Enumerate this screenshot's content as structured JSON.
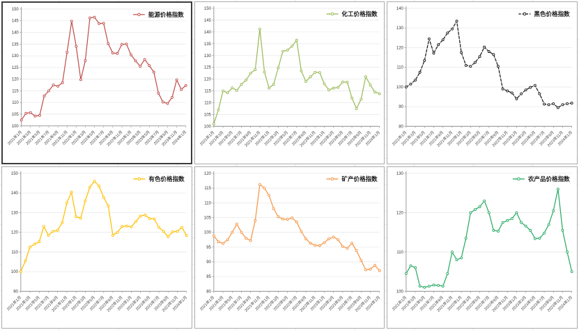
{
  "window": {
    "description": "spreadsheet canvas with six embedded line charts of commodity price indices"
  },
  "x_tick_labels": [
    "2021年1月",
    "2021年3月",
    "2021年5月",
    "2021年7月",
    "2021年9月",
    "2021年11月",
    "2022年1月",
    "2022年3月",
    "2022年5月",
    "2022年7月",
    "2022年9月",
    "2022年11月",
    "2023年1月",
    "2023年3月",
    "2023年5月",
    "2023年7月",
    "2023年9月",
    "2023年11月",
    "2024年1月"
  ],
  "chart_data": [
    {
      "type": "line",
      "title": "能源价格指数",
      "legend": "能源价格指数",
      "legend_position": "top-right",
      "color": "#C0504D",
      "line_style": "solid",
      "marker": "circle-open",
      "grid": "horizontal",
      "ylim": [
        100,
        150
      ],
      "ytick_step": 5,
      "x_months": 37,
      "x_range": "2021年1月 – 2024年1月 (monthly)",
      "values": [
        102.5,
        105.4,
        105.7,
        104.2,
        104.5,
        112.8,
        115.0,
        117.5,
        117.0,
        118.5,
        131.5,
        144.8,
        134.0,
        119.8,
        128.0,
        146.2,
        146.5,
        143.8,
        143.9,
        135.2,
        131.2,
        131.0,
        134.9,
        135.0,
        130.4,
        127.8,
        125.5,
        128.4,
        125.8,
        123.0,
        114.0,
        110.2,
        109.6,
        112.2,
        119.7,
        115.6,
        117.3
      ]
    },
    {
      "type": "line",
      "title": "化工价格指数",
      "legend": "化工价格指数",
      "legend_position": "top-right",
      "color": "#9BBB59",
      "line_style": "solid",
      "marker": "circle-open",
      "grid": "horizontal",
      "ylim": [
        100,
        150
      ],
      "ytick_step": 5,
      "x_months": 37,
      "x_range": "2021年1月 – 2024年1月 (monthly)",
      "values": [
        101.0,
        107.0,
        115.0,
        114.2,
        116.3,
        115.2,
        117.8,
        119.6,
        122.5,
        124.0,
        141.2,
        123.0,
        116.2,
        117.8,
        124.8,
        131.8,
        132.3,
        134.0,
        136.5,
        123.5,
        119.0,
        121.0,
        122.9,
        122.8,
        118.0,
        115.4,
        116.2,
        116.5,
        118.8,
        118.7,
        112.0,
        107.5,
        111.5,
        121.0,
        117.5,
        114.5,
        113.8
      ]
    },
    {
      "type": "line",
      "title": "黑色价格指数",
      "legend": "黑色价格指数",
      "legend_position": "top-right",
      "color": "#1a1a1a",
      "line_style": "dashed",
      "marker": "circle-open",
      "grid": "horizontal",
      "ylim": [
        80,
        140
      ],
      "ytick_step": 10,
      "x_months": 37,
      "x_range": "2021年1月 – 2024年1月 (monthly)",
      "values": [
        100.0,
        101.5,
        103.5,
        107.5,
        113.5,
        124.5,
        117.2,
        121.5,
        124.0,
        127.5,
        129.5,
        133.5,
        117.5,
        111.0,
        110.5,
        112.5,
        115.5,
        120.3,
        118.0,
        116.5,
        110.5,
        99.0,
        98.0,
        97.0,
        94.0,
        96.5,
        98.5,
        99.8,
        100.8,
        96.5,
        91.3,
        91.0,
        91.5,
        89.5,
        91.0,
        91.5,
        91.8
      ]
    },
    {
      "type": "line",
      "title": "有色价格指数",
      "legend": "有色价格指数",
      "legend_position": "top-right",
      "color": "#FFC000",
      "line_style": "solid",
      "marker": "circle-open",
      "grid": "horizontal",
      "ylim": [
        90,
        150
      ],
      "ytick_step": 10,
      "x_months": 37,
      "x_range": "2021年1月 – 2024年1月 (monthly)",
      "values": [
        100.0,
        105.5,
        112.5,
        114.0,
        115.2,
        123.0,
        118.5,
        120.5,
        121.0,
        125.0,
        135.0,
        140.5,
        128.0,
        127.2,
        136.0,
        143.0,
        146.0,
        143.5,
        137.8,
        133.5,
        118.5,
        120.0,
        123.0,
        123.2,
        122.8,
        125.5,
        128.3,
        128.8,
        127.0,
        126.8,
        122.5,
        120.5,
        117.8,
        120.3,
        120.5,
        122.5,
        118.4
      ]
    },
    {
      "type": "line",
      "title": "矿产价格指数",
      "legend": "矿产价格指数",
      "legend_position": "top-right",
      "color": "#F79646",
      "line_style": "solid",
      "marker": "circle-open",
      "grid": "horizontal",
      "ylim": [
        80,
        120
      ],
      "ytick_step": 5,
      "x_months": 37,
      "x_range": "2021年1月 – 2024年1月 (monthly)",
      "values": [
        98.8,
        96.8,
        96.2,
        97.5,
        100.0,
        102.8,
        100.0,
        98.0,
        97.2,
        104.0,
        116.2,
        115.0,
        112.5,
        108.0,
        105.3,
        104.5,
        104.4,
        104.9,
        103.5,
        100.3,
        97.8,
        96.3,
        95.6,
        95.5,
        96.5,
        97.8,
        98.4,
        97.5,
        95.2,
        94.6,
        96.3,
        93.8,
        90.5,
        87.3,
        87.5,
        88.8,
        87.0
      ]
    },
    {
      "type": "line",
      "title": "农产品价格指数",
      "legend": "农产品价格指数",
      "legend_position": "top-right",
      "color": "#2bab66",
      "line_style": "solid",
      "marker": "circle-open",
      "grid": "horizontal",
      "ylim": [
        100,
        130
      ],
      "ytick_step": 10,
      "x_months": 37,
      "x_range": "2021年1月 – 2024年1月 (monthly)",
      "values": [
        104.5,
        106.5,
        106.0,
        101.3,
        101.0,
        101.3,
        101.6,
        101.5,
        101.3,
        104.5,
        110.0,
        108.0,
        108.5,
        113.5,
        120.0,
        120.8,
        121.5,
        123.0,
        120.0,
        115.5,
        115.3,
        117.5,
        118.0,
        118.5,
        120.0,
        117.5,
        116.6,
        115.5,
        113.4,
        113.5,
        114.8,
        117.0,
        120.5,
        126.0,
        115.5,
        110.0,
        105.0
      ]
    }
  ]
}
